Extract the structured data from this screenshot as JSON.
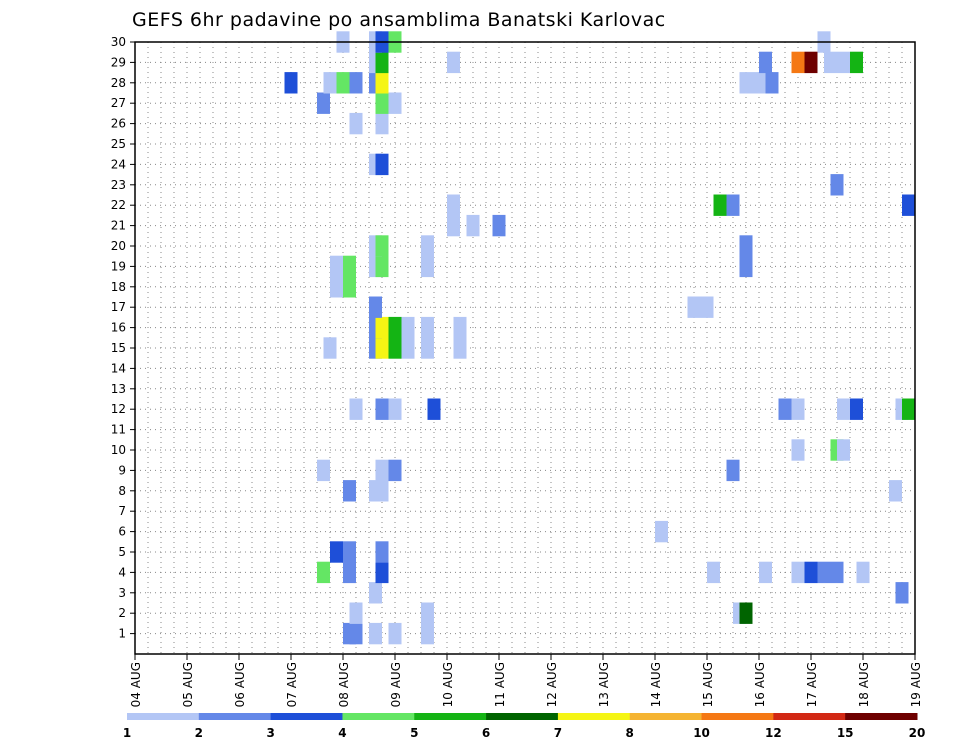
{
  "chart_data": {
    "type": "heatmap",
    "title": "GEFS 6hr padavine po ansamblima Banatski Karlovac",
    "x_tick_labels": [
      "04 AUG",
      "05 AUG",
      "06 AUG",
      "07 AUG",
      "08 AUG",
      "09 AUG",
      "10 AUG",
      "11 AUG",
      "12 AUG",
      "13 AUG",
      "14 AUG",
      "15 AUG",
      "16 AUG",
      "17 AUG",
      "18 AUG",
      "19 AUG"
    ],
    "y_tick_labels": [
      "1",
      "2",
      "3",
      "4",
      "5",
      "6",
      "7",
      "8",
      "9",
      "10",
      "11",
      "12",
      "13",
      "14",
      "15",
      "16",
      "17",
      "18",
      "19",
      "20",
      "21",
      "22",
      "23",
      "24",
      "25",
      "26",
      "27",
      "28",
      "29",
      "30"
    ],
    "xlim": [
      0,
      60
    ],
    "ylim": [
      0,
      30
    ],
    "grid": true,
    "x_axis_note": "x = time in 6-hour steps starting 04 AUG; y = ensemble member",
    "color_scale": {
      "colors": [
        "#b3c6f5",
        "#6488e8",
        "#1e4fd8",
        "#64e664",
        "#14b414",
        "#006400",
        "#f5f514",
        "#f5b432",
        "#f57814",
        "#d22814",
        "#6e0000"
      ],
      "labels": [
        "1",
        "2",
        "3",
        "4",
        "5",
        "6",
        "7",
        "8",
        "10",
        "12",
        "15",
        "20"
      ]
    },
    "cells": [
      {
        "x": 16.5,
        "y": 1,
        "level": 2
      },
      {
        "x": 17,
        "y": 1,
        "level": 2
      },
      {
        "x": 18.5,
        "y": 1,
        "level": 1
      },
      {
        "x": 20,
        "y": 1,
        "level": 1
      },
      {
        "x": 22.5,
        "y": 1,
        "level": 1
      },
      {
        "x": 17,
        "y": 2,
        "level": 1
      },
      {
        "x": 22.5,
        "y": 2,
        "level": 1
      },
      {
        "x": 46.5,
        "y": 2,
        "level": 1
      },
      {
        "x": 47,
        "y": 2,
        "level": 6
      },
      {
        "x": 18.5,
        "y": 3,
        "level": 1
      },
      {
        "x": 59,
        "y": 3,
        "level": 2
      },
      {
        "x": 14.5,
        "y": 4,
        "level": 4
      },
      {
        "x": 16.5,
        "y": 4,
        "level": 2
      },
      {
        "x": 19,
        "y": 4,
        "level": 3
      },
      {
        "x": 44.5,
        "y": 4,
        "level": 1
      },
      {
        "x": 48.5,
        "y": 4,
        "level": 1
      },
      {
        "x": 51,
        "y": 4,
        "level": 1
      },
      {
        "x": 52,
        "y": 4,
        "level": 3
      },
      {
        "x": 53,
        "y": 4,
        "level": 2
      },
      {
        "x": 54,
        "y": 4,
        "level": 2
      },
      {
        "x": 56,
        "y": 4,
        "level": 1
      },
      {
        "x": 15.5,
        "y": 5,
        "level": 3
      },
      {
        "x": 16.5,
        "y": 5,
        "level": 2
      },
      {
        "x": 19,
        "y": 5,
        "level": 2
      },
      {
        "x": 40.5,
        "y": 6,
        "level": 1
      },
      {
        "x": 16.5,
        "y": 8,
        "level": 2
      },
      {
        "x": 18.5,
        "y": 8,
        "level": 1
      },
      {
        "x": 19,
        "y": 8,
        "level": 1
      },
      {
        "x": 58.5,
        "y": 8,
        "level": 1
      },
      {
        "x": 14.5,
        "y": 9,
        "level": 1
      },
      {
        "x": 19,
        "y": 9,
        "level": 1
      },
      {
        "x": 20,
        "y": 9,
        "level": 2
      },
      {
        "x": 46,
        "y": 9,
        "level": 2
      },
      {
        "x": 51,
        "y": 10,
        "level": 1
      },
      {
        "x": 54,
        "y": 10,
        "level": 4
      },
      {
        "x": 54.5,
        "y": 10,
        "level": 1
      },
      {
        "x": 17,
        "y": 12,
        "level": 1
      },
      {
        "x": 19,
        "y": 12,
        "level": 2
      },
      {
        "x": 20,
        "y": 12,
        "level": 1
      },
      {
        "x": 23,
        "y": 12,
        "level": 3
      },
      {
        "x": 50,
        "y": 12,
        "level": 2
      },
      {
        "x": 51,
        "y": 12,
        "level": 1
      },
      {
        "x": 54.5,
        "y": 12,
        "level": 1
      },
      {
        "x": 55.5,
        "y": 12,
        "level": 3
      },
      {
        "x": 59,
        "y": 12,
        "level": 1
      },
      {
        "x": 59.5,
        "y": 12,
        "level": 5
      },
      {
        "x": 15,
        "y": 15,
        "level": 1
      },
      {
        "x": 18.5,
        "y": 15,
        "level": 2
      },
      {
        "x": 19,
        "y": 15,
        "level": 7
      },
      {
        "x": 20,
        "y": 15,
        "level": 5
      },
      {
        "x": 21,
        "y": 15,
        "level": 1
      },
      {
        "x": 22.5,
        "y": 15,
        "level": 1
      },
      {
        "x": 25,
        "y": 15,
        "level": 1
      },
      {
        "x": 18.5,
        "y": 16,
        "level": 2
      },
      {
        "x": 19,
        "y": 16,
        "level": 7
      },
      {
        "x": 20,
        "y": 16,
        "level": 5
      },
      {
        "x": 21,
        "y": 16,
        "level": 1
      },
      {
        "x": 22.5,
        "y": 16,
        "level": 1
      },
      {
        "x": 25,
        "y": 16,
        "level": 1
      },
      {
        "x": 18.5,
        "y": 17,
        "level": 2
      },
      {
        "x": 43,
        "y": 17,
        "level": 1
      },
      {
        "x": 44,
        "y": 17,
        "level": 1
      },
      {
        "x": 15.5,
        "y": 18,
        "level": 1
      },
      {
        "x": 16.5,
        "y": 18,
        "level": 4
      },
      {
        "x": 15.5,
        "y": 19,
        "level": 1
      },
      {
        "x": 16.5,
        "y": 19,
        "level": 4
      },
      {
        "x": 18.5,
        "y": 19,
        "level": 1
      },
      {
        "x": 19,
        "y": 19,
        "level": 4
      },
      {
        "x": 22.5,
        "y": 19,
        "level": 1
      },
      {
        "x": 47,
        "y": 19,
        "level": 2
      },
      {
        "x": 18.5,
        "y": 20,
        "level": 1
      },
      {
        "x": 19,
        "y": 20,
        "level": 4
      },
      {
        "x": 22.5,
        "y": 20,
        "level": 1
      },
      {
        "x": 47,
        "y": 20,
        "level": 2
      },
      {
        "x": 24.5,
        "y": 21,
        "level": 1
      },
      {
        "x": 26,
        "y": 21,
        "level": 1
      },
      {
        "x": 28,
        "y": 21,
        "level": 2
      },
      {
        "x": 24.5,
        "y": 22,
        "level": 1
      },
      {
        "x": 45,
        "y": 22,
        "level": 5
      },
      {
        "x": 46,
        "y": 22,
        "level": 2
      },
      {
        "x": 59.5,
        "y": 22,
        "level": 3
      },
      {
        "x": 54,
        "y": 23,
        "level": 2
      },
      {
        "x": 18.5,
        "y": 24,
        "level": 1
      },
      {
        "x": 19,
        "y": 24,
        "level": 3
      },
      {
        "x": 17,
        "y": 26,
        "level": 1
      },
      {
        "x": 19,
        "y": 26,
        "level": 1
      },
      {
        "x": 14.5,
        "y": 27,
        "level": 2
      },
      {
        "x": 19,
        "y": 27,
        "level": 4
      },
      {
        "x": 20,
        "y": 27,
        "level": 1
      },
      {
        "x": 12,
        "y": 28,
        "level": 3
      },
      {
        "x": 15,
        "y": 28,
        "level": 1
      },
      {
        "x": 16,
        "y": 28,
        "level": 4
      },
      {
        "x": 17,
        "y": 28,
        "level": 2
      },
      {
        "x": 18.5,
        "y": 28,
        "level": 2
      },
      {
        "x": 19,
        "y": 28,
        "level": 7
      },
      {
        "x": 47,
        "y": 28,
        "level": 1
      },
      {
        "x": 48,
        "y": 28,
        "level": 1
      },
      {
        "x": 49,
        "y": 28,
        "level": 2
      },
      {
        "x": 18.5,
        "y": 29,
        "level": 1
      },
      {
        "x": 19,
        "y": 29,
        "level": 5
      },
      {
        "x": 24.5,
        "y": 29,
        "level": 1
      },
      {
        "x": 48.5,
        "y": 29,
        "level": 2
      },
      {
        "x": 51,
        "y": 29,
        "level": 9
      },
      {
        "x": 52,
        "y": 29,
        "level": 11
      },
      {
        "x": 53.5,
        "y": 29,
        "level": 1
      },
      {
        "x": 54.5,
        "y": 29,
        "level": 1
      },
      {
        "x": 55.5,
        "y": 29,
        "level": 5
      },
      {
        "x": 16,
        "y": 30,
        "level": 1
      },
      {
        "x": 18.5,
        "y": 30,
        "level": 1
      },
      {
        "x": 19,
        "y": 30,
        "level": 3
      },
      {
        "x": 20,
        "y": 30,
        "level": 4
      },
      {
        "x": 53,
        "y": 30,
        "level": 1
      }
    ]
  }
}
